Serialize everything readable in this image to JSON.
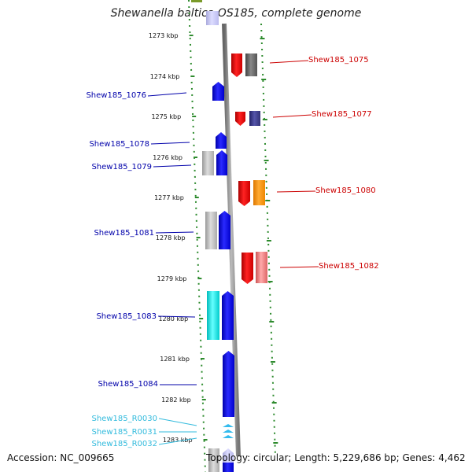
{
  "title": "Shewanella baltica OS185, complete genome",
  "footer": {
    "accession": "Accession: NC_009665",
    "summary": "Topology: circular; Length: 5,229,686 bp; Genes: 4,462"
  },
  "ticks": [
    {
      "label": "1273 kbp"
    },
    {
      "label": "1274 kbp"
    },
    {
      "label": "1275 kbp"
    },
    {
      "label": "1276 kbp"
    },
    {
      "label": "1277 kbp"
    },
    {
      "label": "1278 kbp"
    },
    {
      "label": "1279 kbp"
    },
    {
      "label": "1280 kbp"
    },
    {
      "label": "1281 kbp"
    },
    {
      "label": "1282 kbp"
    },
    {
      "label": "1283 kbp"
    }
  ],
  "genes_right": [
    {
      "label": "Shew185_1075",
      "color": "#cc0000"
    },
    {
      "label": "Shew185_1077",
      "color": "#cc0000"
    },
    {
      "label": "Shew185_1080",
      "color": "#cc0000"
    },
    {
      "label": "Shew185_1082",
      "color": "#cc0000"
    }
  ],
  "genes_left": [
    {
      "label": "Shew185_1076",
      "color": "#0000aa"
    },
    {
      "label": "Shew185_1078",
      "color": "#0000aa"
    },
    {
      "label": "Shew185_1079",
      "color": "#0000aa"
    },
    {
      "label": "Shew185_1081",
      "color": "#0000aa"
    },
    {
      "label": "Shew185_1083",
      "color": "#0000aa"
    },
    {
      "label": "Shew185_1084",
      "color": "#0000aa"
    }
  ],
  "rna_left": [
    {
      "label": "Shew185_R0030",
      "color": "#33bbdd"
    },
    {
      "label": "Shew185_R0031",
      "color": "#33bbdd"
    },
    {
      "label": "Shew185_R0032",
      "color": "#33bbdd"
    }
  ]
}
